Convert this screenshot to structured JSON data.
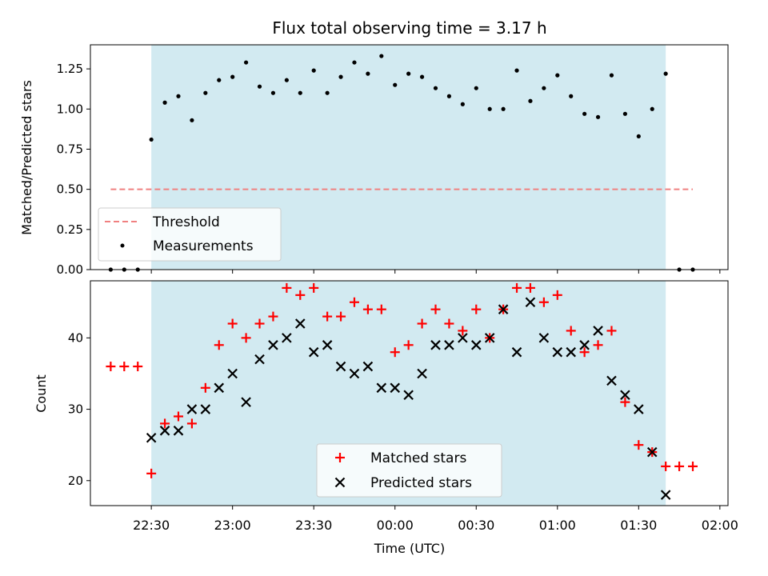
{
  "title": "Flux total observing time = 3.17 h",
  "colors": {
    "shade": "#add8e6",
    "threshold": "#f08080",
    "matched": "#ff0000",
    "predicted": "#000000",
    "measurement": "#000000"
  },
  "chart_data": [
    {
      "type": "scatter",
      "title": "Flux total observing time = 3.17 h",
      "xlabel": "",
      "ylabel": "Matched/Predicted stars",
      "ylim": [
        0,
        1.4
      ],
      "yticks": [
        "0.00",
        "0.25",
        "0.50",
        "0.75",
        "1.00",
        "1.25"
      ],
      "observing_window": [
        "22:30",
        "01:40"
      ],
      "threshold": {
        "name": "Threshold",
        "value": 0.5,
        "x_range": [
          "22:15",
          "01:50"
        ]
      },
      "legend": {
        "placement": "lower-left",
        "entries": [
          "Threshold",
          "Measurements"
        ]
      },
      "series": [
        {
          "name": "Measurements",
          "marker": "dot",
          "x": [
            "22:15",
            "22:20",
            "22:25",
            "22:30",
            "22:35",
            "22:40",
            "22:45",
            "22:50",
            "22:55",
            "23:00",
            "23:05",
            "23:10",
            "23:15",
            "23:20",
            "23:25",
            "23:30",
            "23:35",
            "23:40",
            "23:45",
            "23:50",
            "23:55",
            "00:00",
            "00:05",
            "00:10",
            "00:15",
            "00:20",
            "00:25",
            "00:30",
            "00:35",
            "00:40",
            "00:45",
            "00:50",
            "00:55",
            "01:00",
            "01:05",
            "01:10",
            "01:15",
            "01:20",
            "01:25",
            "01:30",
            "01:35",
            "01:40",
            "01:45",
            "01:50"
          ],
          "y": [
            0,
            0,
            0,
            0.81,
            1.04,
            1.08,
            0.93,
            1.1,
            1.18,
            1.2,
            1.29,
            1.14,
            1.1,
            1.18,
            1.1,
            1.24,
            1.1,
            1.2,
            1.29,
            1.22,
            1.33,
            1.15,
            1.22,
            1.2,
            1.13,
            1.08,
            1.03,
            1.13,
            1.0,
            1.0,
            1.24,
            1.05,
            1.13,
            1.21,
            1.08,
            0.97,
            0.95,
            1.21,
            0.97,
            0.83,
            1.0,
            1.22,
            0,
            0
          ]
        }
      ]
    },
    {
      "type": "scatter",
      "xlabel": "Time (UTC)",
      "ylabel": "Count",
      "ylim": [
        16.5,
        48
      ],
      "yticks": [
        "20",
        "30",
        "40"
      ],
      "xticks": [
        "22:30",
        "23:00",
        "23:30",
        "00:00",
        "00:30",
        "01:00",
        "01:30",
        "02:00"
      ],
      "observing_window": [
        "22:30",
        "01:40"
      ],
      "legend": {
        "placement": "lower-center",
        "entries": [
          "Matched stars",
          "Predicted stars"
        ]
      },
      "series": [
        {
          "name": "Matched stars",
          "marker": "plus",
          "x": [
            "22:15",
            "22:20",
            "22:25",
            "22:30",
            "22:35",
            "22:40",
            "22:45",
            "22:50",
            "22:55",
            "23:00",
            "23:05",
            "23:10",
            "23:15",
            "23:20",
            "23:25",
            "23:30",
            "23:35",
            "23:40",
            "23:45",
            "23:50",
            "23:55",
            "00:00",
            "00:05",
            "00:10",
            "00:15",
            "00:20",
            "00:25",
            "00:30",
            "00:35",
            "00:40",
            "00:45",
            "00:50",
            "00:55",
            "01:00",
            "01:05",
            "01:10",
            "01:15",
            "01:20",
            "01:25",
            "01:30",
            "01:35",
            "01:40",
            "01:45",
            "01:50"
          ],
          "y": [
            36,
            36,
            36,
            21,
            28,
            29,
            28,
            33,
            39,
            42,
            40,
            42,
            43,
            47,
            46,
            47,
            43,
            43,
            45,
            44,
            44,
            38,
            39,
            42,
            44,
            42,
            41,
            44,
            40,
            44,
            47,
            47,
            45,
            46,
            41,
            38,
            39,
            41,
            31,
            25,
            24,
            22,
            22,
            22
          ]
        },
        {
          "name": "Predicted stars",
          "marker": "x",
          "x": [
            "22:30",
            "22:35",
            "22:40",
            "22:45",
            "22:50",
            "22:55",
            "23:00",
            "23:05",
            "23:10",
            "23:15",
            "23:20",
            "23:25",
            "23:30",
            "23:35",
            "23:40",
            "23:45",
            "23:50",
            "23:55",
            "00:00",
            "00:05",
            "00:10",
            "00:15",
            "00:20",
            "00:25",
            "00:30",
            "00:35",
            "00:40",
            "00:45",
            "00:50",
            "00:55",
            "01:00",
            "01:05",
            "01:10",
            "01:15",
            "01:20",
            "01:25",
            "01:30",
            "01:35",
            "01:40"
          ],
          "y": [
            26,
            27,
            27,
            30,
            30,
            33,
            35,
            31,
            37,
            39,
            40,
            42,
            38,
            39,
            36,
            35,
            36,
            33,
            33,
            32,
            35,
            39,
            39,
            40,
            39,
            40,
            44,
            38,
            45,
            40,
            38,
            38,
            39,
            41,
            34,
            32,
            30,
            24,
            18
          ]
        }
      ]
    }
  ]
}
